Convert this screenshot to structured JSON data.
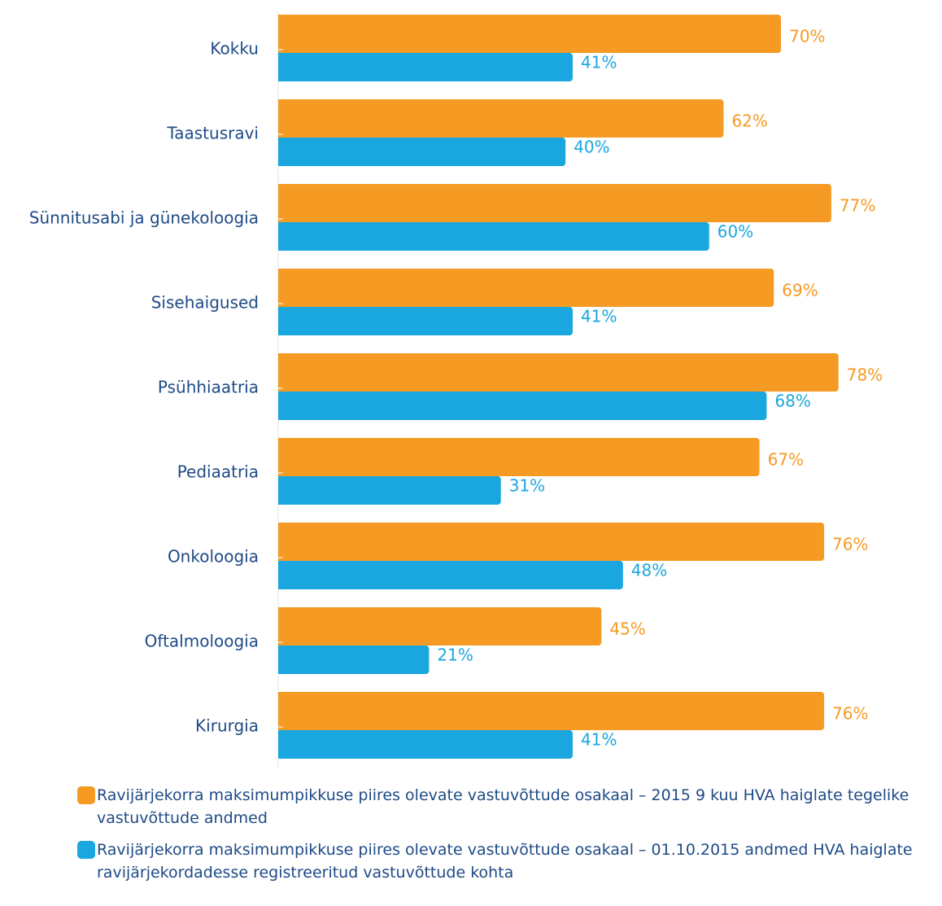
{
  "chart_data": {
    "type": "bar",
    "orientation": "horizontal",
    "categories": [
      "Kokku",
      "Taastusravi",
      "Sünnitusabi ja günekoloogia",
      "Sisehaigused",
      "Psühhiaatria",
      "Pediaatria",
      "Onkoloogia",
      "Oftalmoloogia",
      "Kirurgia"
    ],
    "series": [
      {
        "name": "Ravijärjekorra maksimumpikkuse piires olevate vastuvõttude osakaal – 2015 9 kuu HVA haiglate tegelike vastuvõttude andmed",
        "color": "#f59a23",
        "values": [
          70,
          62,
          77,
          69,
          78,
          67,
          76,
          45,
          76
        ],
        "value_labels": [
          "70%",
          "62%",
          "77%",
          "69%",
          "78%",
          "67%",
          "76%",
          "45%",
          "76%"
        ]
      },
      {
        "name": "Ravijärjekorra maksimumpikkuse piires olevate vastuvõttude osakaal – 01.10.2015 andmed HVA haiglate ravijärjekordadesse registreeritud vastuvõttude kohta",
        "color": "#1aa7e0",
        "values": [
          41,
          40,
          60,
          41,
          68,
          31,
          48,
          21,
          41
        ],
        "value_labels": [
          "41%",
          "40%",
          "60%",
          "41%",
          "68%",
          "31%",
          "48%",
          "21%",
          "41%"
        ]
      }
    ]
  }
}
